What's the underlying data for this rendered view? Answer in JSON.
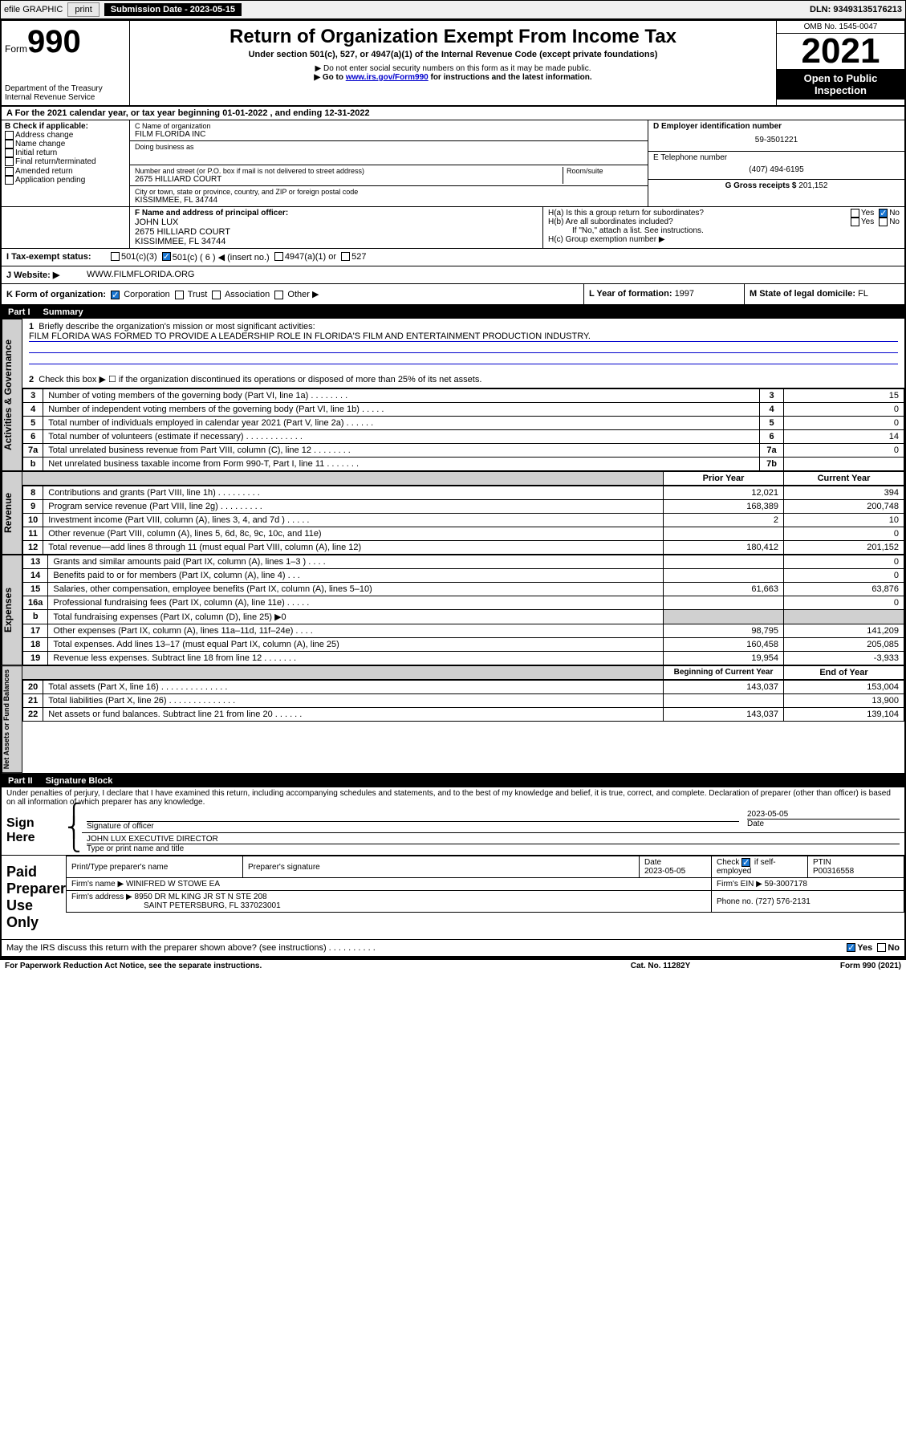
{
  "topbar": {
    "efile": "efile GRAPHIC",
    "print": "print",
    "subdate_label": "Submission Date - 2023-05-15",
    "dln": "DLN: 93493135176213"
  },
  "header": {
    "form_label": "Form",
    "form_no": "990",
    "dept": "Department of the Treasury",
    "irs": "Internal Revenue Service",
    "title": "Return of Organization Exempt From Income Tax",
    "subtitle": "Under section 501(c), 527, or 4947(a)(1) of the Internal Revenue Code (except private foundations)",
    "note1": "▶ Do not enter social security numbers on this form as it may be made public.",
    "note2_pre": "▶ Go to ",
    "note2_link": "www.irs.gov/Form990",
    "note2_post": " for instructions and the latest information.",
    "omb": "OMB No. 1545-0047",
    "year": "2021",
    "inspection": "Open to Public Inspection"
  },
  "lineA": "A For the 2021 calendar year, or tax year beginning 01-01-2022   , and ending 12-31-2022",
  "boxB": {
    "label": "B Check if applicable:",
    "items": [
      "Address change",
      "Name change",
      "Initial return",
      "Final return/terminated",
      "Amended return",
      "Application pending"
    ]
  },
  "boxC": {
    "name_label": "C Name of organization",
    "name": "FILM FLORIDA INC",
    "dba_label": "Doing business as",
    "addr_label": "Number and street (or P.O. box if mail is not delivered to street address)",
    "room_label": "Room/suite",
    "addr": "2675 HILLIARD COURT",
    "city_label": "City or town, state or province, country, and ZIP or foreign postal code",
    "city": "KISSIMMEE, FL  34744"
  },
  "boxD": {
    "label": "D Employer identification number",
    "val": "59-3501221"
  },
  "boxE": {
    "label": "E Telephone number",
    "val": "(407) 494-6195"
  },
  "boxG": {
    "label": "G Gross receipts $ ",
    "val": "201,152"
  },
  "boxF": {
    "label": "F Name and address of principal officer:",
    "name": "JOHN LUX",
    "addr1": "2675 HILLIARD COURT",
    "addr2": "KISSIMMEE, FL  34744"
  },
  "boxH": {
    "a": "H(a)  Is this a group return for subordinates?",
    "b": "H(b)  Are all subordinates included?",
    "b_note": "If \"No,\" attach a list. See instructions.",
    "c": "H(c)  Group exemption number ▶",
    "yes": "Yes",
    "no": "No"
  },
  "lineI": {
    "label": "I    Tax-exempt status:",
    "o1": "501(c)(3)",
    "o2": "501(c) ( 6 ) ◀ (insert no.)",
    "o3": "4947(a)(1) or",
    "o4": "527"
  },
  "lineJ": {
    "label": "J    Website: ▶",
    "val": "WWW.FILMFLORIDA.ORG"
  },
  "lineK": {
    "label": "K Form of organization:",
    "o1": "Corporation",
    "o2": "Trust",
    "o3": "Association",
    "o4": "Other ▶"
  },
  "lineL": {
    "label": "L Year of formation: ",
    "val": "1997"
  },
  "lineM": {
    "label": "M State of legal domicile: ",
    "val": "FL"
  },
  "part1": {
    "label": "Part I",
    "title": "Summary"
  },
  "summary": {
    "q1": "Briefly describe the organization's mission or most significant activities:",
    "mission": "FILM FLORIDA WAS FORMED TO PROVIDE A LEADERSHIP ROLE IN FLORIDA'S FILM AND ENTERTAINMENT PRODUCTION INDUSTRY.",
    "q2": "Check this box ▶ ☐  if the organization discontinued its operations or disposed of more than 25% of its net assets.",
    "rows_top": [
      {
        "n": "3",
        "d": "Number of voting members of the governing body (Part VI, line 1a)   .    .    .    .    .    .    .    .",
        "b": "3",
        "v": "15"
      },
      {
        "n": "4",
        "d": "Number of independent voting members of the governing body (Part VI, line 1b)   .    .    .    .    .",
        "b": "4",
        "v": "0"
      },
      {
        "n": "5",
        "d": "Total number of individuals employed in calendar year 2021 (Part V, line 2a)   .    .    .    .    .    .",
        "b": "5",
        "v": "0"
      },
      {
        "n": "6",
        "d": "Total number of volunteers (estimate if necessary)   .    .    .    .    .    .    .    .    .    .    .    .",
        "b": "6",
        "v": "14"
      },
      {
        "n": "7a",
        "d": "Total unrelated business revenue from Part VIII, column (C), line 12   .    .    .    .    .    .    .    .",
        "b": "7a",
        "v": "0"
      },
      {
        "n": "b",
        "d": "Net unrelated business taxable income from Form 990-T, Part I, line 11   .    .    .    .    .    .    .",
        "b": "7b",
        "v": ""
      }
    ],
    "col_prior": "Prior Year",
    "col_current": "Current Year",
    "rev_rows": [
      {
        "n": "8",
        "d": "Contributions and grants (Part VIII, line 1h)   .    .    .    .    .    .    .    .    .",
        "p": "12,021",
        "c": "394"
      },
      {
        "n": "9",
        "d": "Program service revenue (Part VIII, line 2g)   .    .    .    .    .    .    .    .    .",
        "p": "168,389",
        "c": "200,748"
      },
      {
        "n": "10",
        "d": "Investment income (Part VIII, column (A), lines 3, 4, and 7d )   .    .    .    .    .",
        "p": "2",
        "c": "10"
      },
      {
        "n": "11",
        "d": "Other revenue (Part VIII, column (A), lines 5, 6d, 8c, 9c, 10c, and 11e)",
        "p": "",
        "c": "0"
      },
      {
        "n": "12",
        "d": "Total revenue—add lines 8 through 11 (must equal Part VIII, column (A), line 12)",
        "p": "180,412",
        "c": "201,152"
      }
    ],
    "exp_rows": [
      {
        "n": "13",
        "d": "Grants and similar amounts paid (Part IX, column (A), lines 1–3 )   .    .    .    .",
        "p": "",
        "c": "0"
      },
      {
        "n": "14",
        "d": "Benefits paid to or for members (Part IX, column (A), line 4)   .    .    .",
        "p": "",
        "c": "0"
      },
      {
        "n": "15",
        "d": "Salaries, other compensation, employee benefits (Part IX, column (A), lines 5–10)",
        "p": "61,663",
        "c": "63,876"
      },
      {
        "n": "16a",
        "d": "Professional fundraising fees (Part IX, column (A), line 11e)   .    .    .    .    .",
        "p": "",
        "c": "0"
      },
      {
        "n": "b",
        "d": "Total fundraising expenses (Part IX, column (D), line 25) ▶0",
        "p": "grey",
        "c": "grey"
      },
      {
        "n": "17",
        "d": "Other expenses (Part IX, column (A), lines 11a–11d, 11f–24e)   .    .    .    .",
        "p": "98,795",
        "c": "141,209"
      },
      {
        "n": "18",
        "d": "Total expenses. Add lines 13–17 (must equal Part IX, column (A), line 25)",
        "p": "160,458",
        "c": "205,085"
      },
      {
        "n": "19",
        "d": "Revenue less expenses. Subtract line 18 from line 12   .    .    .    .    .    .    .",
        "p": "19,954",
        "c": "-3,933"
      }
    ],
    "col_begin": "Beginning of Current Year",
    "col_end": "End of Year",
    "net_rows": [
      {
        "n": "20",
        "d": "Total assets (Part X, line 16)   .    .    .    .    .    .    .    .    .    .    .    .    .    .",
        "p": "143,037",
        "c": "153,004"
      },
      {
        "n": "21",
        "d": "Total liabilities (Part X, line 26)   .    .    .    .    .    .    .    .    .    .    .    .    .    .",
        "p": "",
        "c": "13,900"
      },
      {
        "n": "22",
        "d": "Net assets or fund balances. Subtract line 21 from line 20   .    .    .    .    .    .",
        "p": "143,037",
        "c": "139,104"
      }
    ],
    "vlabels": {
      "gov": "Activities & Governance",
      "rev": "Revenue",
      "exp": "Expenses",
      "net": "Net Assets or Fund Balances"
    }
  },
  "part2": {
    "label": "Part II",
    "title": "Signature Block"
  },
  "sig": {
    "penalty": "Under penalties of perjury, I declare that I have examined this return, including accompanying schedules and statements, and to the best of my knowledge and belief, it is true, correct, and complete. Declaration of preparer (other than officer) is based on all information of which preparer has any knowledge.",
    "sign_here": "Sign Here",
    "sig_officer": "Signature of officer",
    "date_label": "Date",
    "date": "2023-05-05",
    "name_title": "JOHN LUX  EXECUTIVE DIRECTOR",
    "type_label": "Type or print name and title",
    "paid": "Paid Preparer Use Only",
    "prep_name_label": "Print/Type preparer's name",
    "prep_sig_label": "Preparer's signature",
    "prep_date": "2023-05-05",
    "prep_check": "Check ☑ if self-employed",
    "ptin_label": "PTIN",
    "ptin": "P00316558",
    "firm_name_label": "Firm's name    ▶",
    "firm_name": "WINIFRED W STOWE EA",
    "firm_ein_label": "Firm's EIN ▶",
    "firm_ein": "59-3007178",
    "firm_addr_label": "Firm's address ▶",
    "firm_addr1": "8950 DR ML KING JR ST N STE 208",
    "firm_addr2": "SAINT PETERSBURG, FL  337023001",
    "phone_label": "Phone no.",
    "phone": "(727) 576-2131",
    "discuss": "May the IRS discuss this return with the preparer shown above? (see instructions)   .    .    .    .    .    .    .    .    .    .",
    "yes": "Yes",
    "no": "No"
  },
  "footer": {
    "left": "For Paperwork Reduction Act Notice, see the separate instructions.",
    "mid": "Cat. No. 11282Y",
    "right": "Form 990 (2021)"
  }
}
